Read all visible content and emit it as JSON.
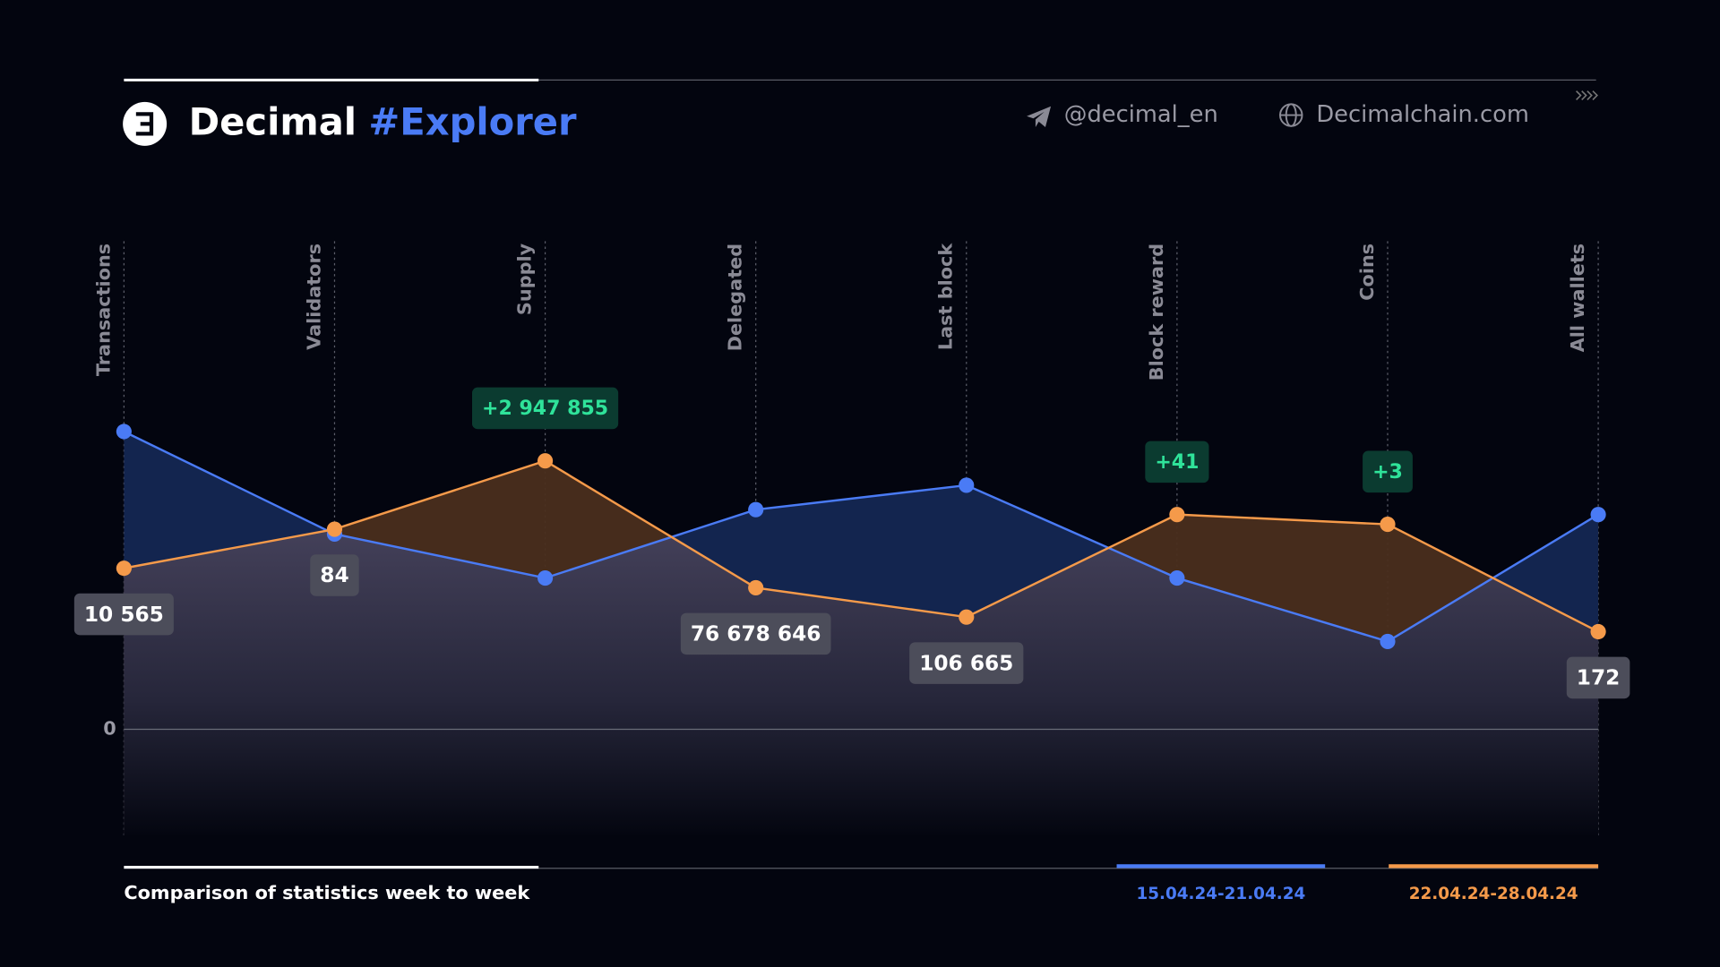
{
  "header": {
    "brand": "Decimal",
    "tag": "#Explorer",
    "telegram": "@decimal_en",
    "website": "Decimalchain.com"
  },
  "chart_data": {
    "type": "line",
    "caption": "Comparison of statistics week to week",
    "categories": [
      "Transactions",
      "Validators",
      "Supply",
      "Delegated",
      "Last block",
      "Block reward",
      "Coins",
      "All wallets"
    ],
    "series": [
      {
        "name": "15.04.24-21.04.24",
        "color": "#4a7bf5",
        "fill": "#13254f",
        "values": [
          61,
          40,
          31,
          45,
          50,
          31,
          18,
          44
        ]
      },
      {
        "name": "22.04.24-28.04.24",
        "color": "#f59a4a",
        "fill": "#4a2e1e",
        "values": [
          33,
          41,
          55,
          29,
          23,
          44,
          42,
          20
        ],
        "labels": [
          "10 565",
          "84",
          null,
          "76 678 646",
          "106 665",
          null,
          null,
          "172"
        ],
        "changes": [
          null,
          null,
          "+2 947 855",
          null,
          null,
          "+41",
          "+3",
          null
        ]
      }
    ],
    "ylim": [
      -21,
      100
    ],
    "yticks": [
      0
    ],
    "grid": true
  }
}
